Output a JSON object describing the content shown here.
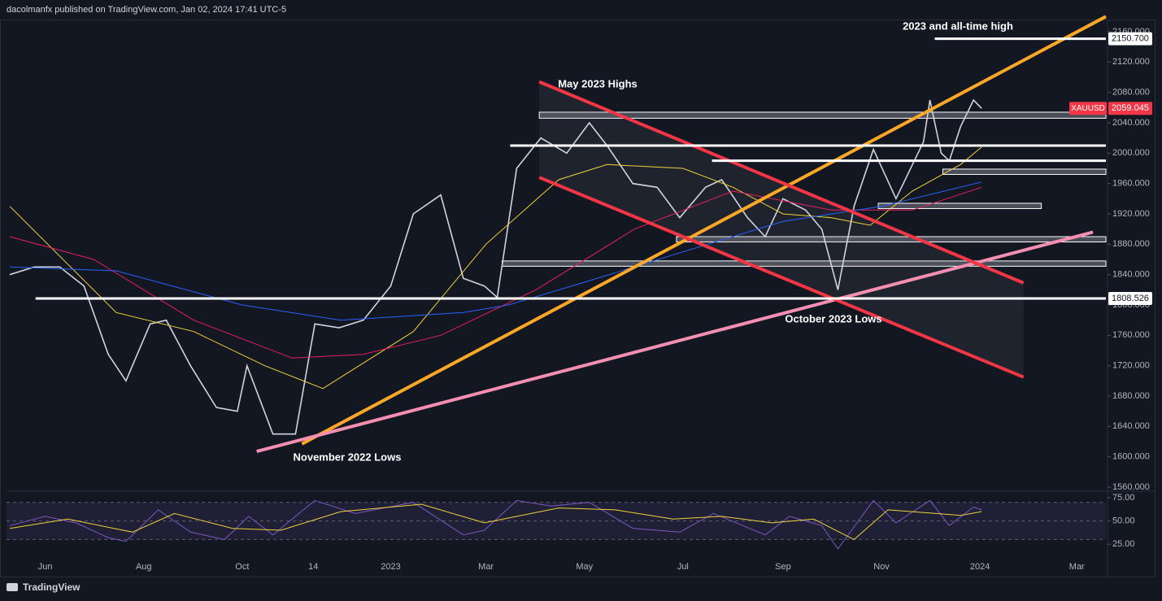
{
  "header": {
    "text": "dacolmanfx published on TradingView.com, Jan 02, 2024 17:41 UTC-5"
  },
  "footer": {
    "brand": "TradingView"
  },
  "chart_data": [
    {
      "type": "line",
      "xlim": [
        "2022-05-08",
        "2024-03-19"
      ],
      "xticks": [
        {
          "value": "2022-06-01",
          "label": "Jun"
        },
        {
          "value": "2022-08-01",
          "label": "Aug"
        },
        {
          "value": "2022-10-01",
          "label": "Oct"
        },
        {
          "value": "2022-11-14",
          "label": "14"
        },
        {
          "value": "2023-01-01",
          "label": "2023"
        },
        {
          "value": "2023-03-01",
          "label": "Mar"
        },
        {
          "value": "2023-05-01",
          "label": "May"
        },
        {
          "value": "2023-07-01",
          "label": "Jul"
        },
        {
          "value": "2023-09-01",
          "label": "Sep"
        },
        {
          "value": "2023-11-01",
          "label": "Nov"
        },
        {
          "value": "2024-01-01",
          "label": "2024"
        },
        {
          "value": "2024-03-01",
          "label": "Mar"
        }
      ],
      "ylim": [
        1560,
        2160
      ],
      "yticks": [
        {
          "value": 1560,
          "label": "1560.000"
        },
        {
          "value": 1600,
          "label": "1600.000"
        },
        {
          "value": 1640,
          "label": "1640.000"
        },
        {
          "value": 1680,
          "label": "1680.000"
        },
        {
          "value": 1720,
          "label": "1720.000"
        },
        {
          "value": 1760,
          "label": "1760.000"
        },
        {
          "value": 1800,
          "label": "1800.000"
        },
        {
          "value": 1840,
          "label": "1840.000"
        },
        {
          "value": 1880,
          "label": "1880.000"
        },
        {
          "value": 1920,
          "label": "1920.000"
        },
        {
          "value": 1960,
          "label": "1960.000"
        },
        {
          "value": 2000,
          "label": "2000.000"
        },
        {
          "value": 2040,
          "label": "2040.000"
        },
        {
          "value": 2080,
          "label": "2080.000"
        },
        {
          "value": 2120,
          "label": "2120.000"
        },
        {
          "value": 2160,
          "label": "2160.000"
        }
      ],
      "series": [
        {
          "name": "XAUUSD",
          "color": "#d1d4dc",
          "x": [
            "2022-05-10",
            "2022-05-25",
            "2022-06-10",
            "2022-06-25",
            "2022-07-10",
            "2022-07-21",
            "2022-08-05",
            "2022-08-15",
            "2022-08-30",
            "2022-09-15",
            "2022-09-28",
            "2022-10-04",
            "2022-10-20",
            "2022-11-03",
            "2022-11-15",
            "2022-11-30",
            "2022-12-15",
            "2023-01-01",
            "2023-01-15",
            "2023-02-01",
            "2023-02-15",
            "2023-02-28",
            "2023-03-08",
            "2023-03-20",
            "2023-04-04",
            "2023-04-20",
            "2023-05-04",
            "2023-05-15",
            "2023-05-31",
            "2023-06-15",
            "2023-06-29",
            "2023-07-15",
            "2023-07-25",
            "2023-08-10",
            "2023-08-21",
            "2023-09-01",
            "2023-09-15",
            "2023-09-25",
            "2023-10-05",
            "2023-10-15",
            "2023-10-27",
            "2023-11-10",
            "2023-11-27",
            "2023-12-01",
            "2023-12-08",
            "2023-12-13",
            "2023-12-20",
            "2023-12-28",
            "2024-01-02"
          ],
          "values": [
            1840,
            1850,
            1850,
            1825,
            1735,
            1700,
            1775,
            1780,
            1720,
            1665,
            1660,
            1720,
            1630,
            1630,
            1775,
            1770,
            1780,
            1825,
            1920,
            1945,
            1835,
            1825,
            1810,
            1980,
            2020,
            2000,
            2040,
            2010,
            1960,
            1955,
            1915,
            1955,
            1965,
            1915,
            1890,
            1940,
            1925,
            1900,
            1820,
            1930,
            2005,
            1940,
            2015,
            2070,
            2000,
            1990,
            2035,
            2070,
            2059.045
          ]
        },
        {
          "color": "#f0d23a",
          "x": [
            "2022-05-10",
            "2022-07-15",
            "2022-09-01",
            "2022-10-15",
            "2022-11-20",
            "2023-01-15",
            "2023-03-01",
            "2023-04-15",
            "2023-05-15",
            "2023-07-01",
            "2023-08-01",
            "2023-09-01",
            "2023-10-01",
            "2023-10-25",
            "2023-11-20",
            "2023-12-20",
            "2024-01-02"
          ],
          "values": [
            1930,
            1790,
            1765,
            1720,
            1690,
            1765,
            1880,
            1965,
            1985,
            1980,
            1955,
            1920,
            1915,
            1905,
            1950,
            1985,
            2008
          ]
        },
        {
          "color": "#e91e63",
          "x": [
            "2022-05-10",
            "2022-07-01",
            "2022-09-01",
            "2022-11-01",
            "2022-12-15",
            "2023-02-01",
            "2023-04-01",
            "2023-06-01",
            "2023-08-01",
            "2023-10-01",
            "2023-11-20",
            "2024-01-02"
          ],
          "values": [
            1890,
            1860,
            1780,
            1730,
            1735,
            1760,
            1820,
            1900,
            1950,
            1925,
            1925,
            1955
          ]
        },
        {
          "color": "#2962ff",
          "x": [
            "2022-05-10",
            "2022-07-15",
            "2022-10-01",
            "2022-12-01",
            "2023-02-15",
            "2023-03-15",
            "2023-05-01",
            "2023-07-01",
            "2023-09-01",
            "2023-11-01",
            "2024-01-02"
          ],
          "values": [
            1850,
            1845,
            1800,
            1780,
            1790,
            1800,
            1830,
            1870,
            1910,
            1930,
            1962
          ]
        }
      ],
      "trend_lines": [
        {
          "color": "#ffa726",
          "x": [
            "2022-11-07",
            "2024-03-19"
          ],
          "values": [
            1617,
            2180
          ]
        },
        {
          "color": "#f48fb1",
          "x": [
            "2022-10-10",
            "2024-03-11"
          ],
          "values": [
            1607,
            1896
          ]
        },
        {
          "color": "#f23645",
          "x": [
            "2023-04-03",
            "2024-01-28"
          ],
          "values": [
            2094,
            1829
          ]
        },
        {
          "color": "#f23645",
          "x": [
            "2023-04-03",
            "2024-01-28"
          ],
          "values": [
            1968,
            1705
          ]
        }
      ],
      "levels": [
        {
          "value": 2150.7,
          "value_label": "2150.700",
          "start": "2023-12-04"
        },
        {
          "value": 2010,
          "start": "2023-03-16"
        },
        {
          "value": 1990,
          "start": "2023-07-19"
        },
        {
          "value": 1808.526,
          "value_label": "1808.526",
          "start": "2022-05-26"
        }
      ],
      "zones": [
        {
          "low": 2046,
          "high": 2054,
          "start": "2023-04-03",
          "end": "2024-03-19"
        },
        {
          "low": 1972,
          "high": 1979,
          "start": "2023-12-09",
          "end": "2024-03-19"
        },
        {
          "low": 1927,
          "high": 1934,
          "start": "2023-10-30",
          "end": "2024-02-08"
        },
        {
          "low": 1883,
          "high": 1890,
          "start": "2023-06-27",
          "end": "2024-03-19"
        },
        {
          "low": 1851,
          "high": 1858,
          "start": "2023-03-11",
          "end": "2024-03-19"
        }
      ],
      "annotations": [
        "May 2023 Highs",
        "2023 and all-time high",
        "November 2022 Lows",
        "October 2023 Lows"
      ]
    },
    {
      "type": "line",
      "xlim": [
        "2022-05-08",
        "2024-03-19"
      ],
      "ylim": [
        12,
        82
      ],
      "yticks": [
        {
          "value": 75,
          "label": "75.00"
        },
        {
          "value": 50,
          "label": "50.00"
        },
        {
          "value": 25,
          "label": "25.00"
        }
      ],
      "bands": [
        70,
        50,
        30
      ],
      "series": [
        {
          "color": "#7e57c2",
          "x": [
            "2022-05-10",
            "2022-06-01",
            "2022-06-20",
            "2022-07-10",
            "2022-07-21",
            "2022-08-10",
            "2022-08-30",
            "2022-09-20",
            "2022-10-05",
            "2022-10-20",
            "2022-11-15",
            "2022-12-10",
            "2023-01-15",
            "2023-02-15",
            "2023-02-28",
            "2023-03-20",
            "2023-04-10",
            "2023-05-04",
            "2023-05-31",
            "2023-06-29",
            "2023-07-20",
            "2023-08-21",
            "2023-09-05",
            "2023-09-25",
            "2023-10-05",
            "2023-10-27",
            "2023-11-10",
            "2023-12-01",
            "2023-12-13",
            "2023-12-28",
            "2024-01-02"
          ],
          "values": [
            45,
            55,
            48,
            32,
            28,
            62,
            38,
            30,
            55,
            35,
            72,
            58,
            70,
            35,
            40,
            72,
            66,
            70,
            42,
            38,
            58,
            35,
            55,
            45,
            20,
            72,
            48,
            72,
            45,
            65,
            62
          ]
        },
        {
          "color": "#f0d23a",
          "x": [
            "2022-05-10",
            "2022-06-15",
            "2022-07-25",
            "2022-08-20",
            "2022-09-25",
            "2022-10-25",
            "2022-12-01",
            "2023-01-20",
            "2023-02-28",
            "2023-04-15",
            "2023-05-20",
            "2023-06-25",
            "2023-07-25",
            "2023-08-25",
            "2023-09-20",
            "2023-10-15",
            "2023-11-05",
            "2023-12-05",
            "2023-12-20",
            "2024-01-02"
          ],
          "values": [
            42,
            52,
            38,
            58,
            42,
            40,
            60,
            68,
            48,
            64,
            62,
            52,
            55,
            48,
            52,
            30,
            62,
            58,
            56,
            60
          ]
        }
      ]
    }
  ]
}
